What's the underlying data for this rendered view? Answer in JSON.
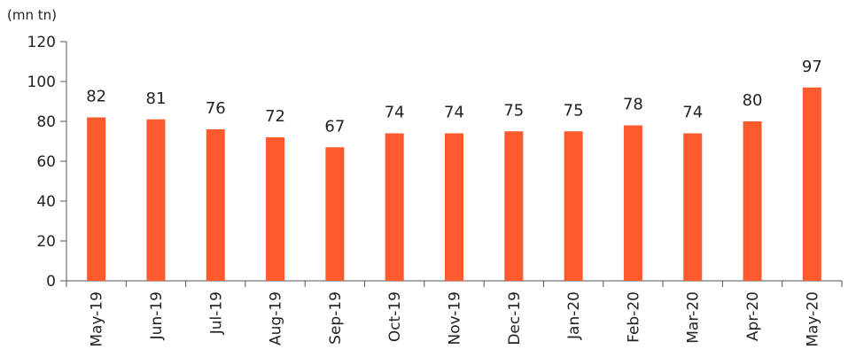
{
  "chart_data": {
    "type": "bar",
    "unit_label": "(mn tn)",
    "categories": [
      "May-19",
      "Jun-19",
      "Jul-19",
      "Aug-19",
      "Sep-19",
      "Oct-19",
      "Nov-19",
      "Dec-19",
      "Jan-20",
      "Feb-20",
      "Mar-20",
      "Apr-20",
      "May-20"
    ],
    "values": [
      82,
      81,
      76,
      72,
      67,
      74,
      74,
      75,
      75,
      78,
      74,
      80,
      97
    ],
    "data_labels": [
      "82",
      "81",
      "76",
      "72",
      "67",
      "74",
      "74",
      "75",
      "75",
      "78",
      "74",
      "80",
      "97"
    ],
    "ylim": [
      0,
      120
    ],
    "yticks": [
      0,
      20,
      40,
      60,
      80,
      100,
      120
    ],
    "ytick_labels": [
      "0",
      "20",
      "40",
      "60",
      "80",
      "100",
      "120"
    ],
    "grid": false,
    "legend": "none",
    "colors": {
      "bar": "#FF5A2D",
      "axis": "#555555",
      "text": "#222222"
    }
  }
}
